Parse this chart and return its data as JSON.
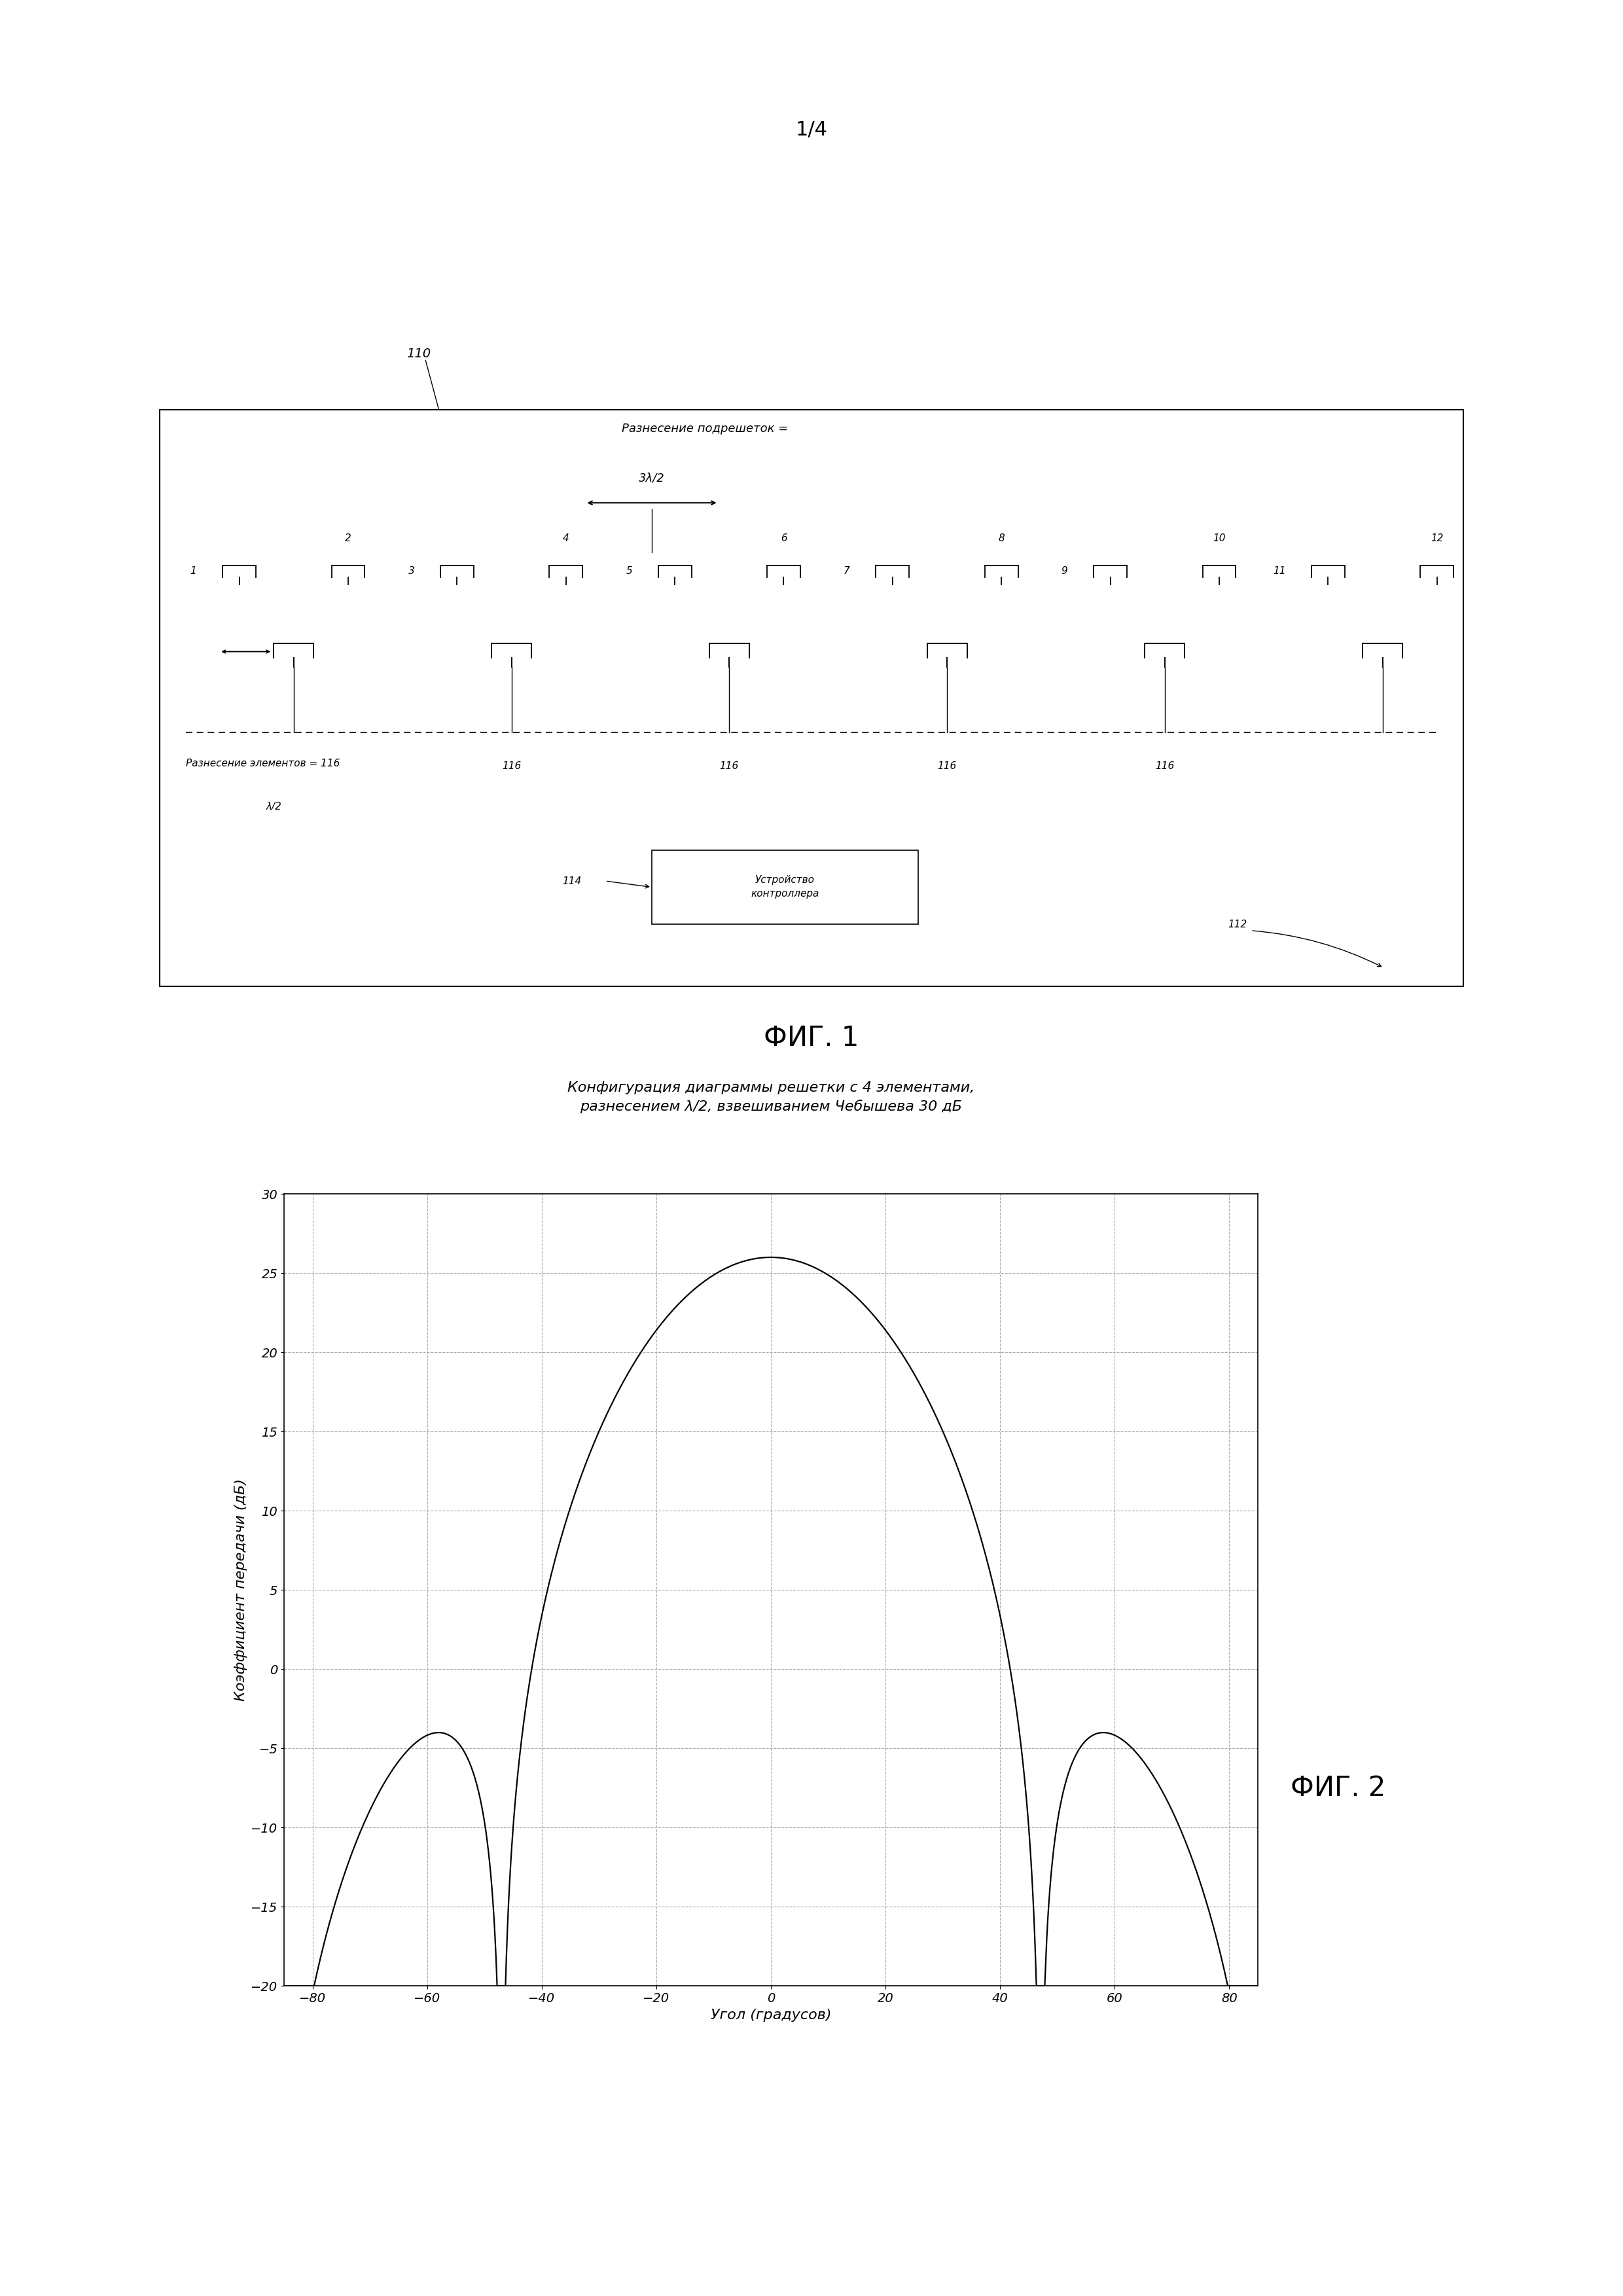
{
  "page_width": 24.8,
  "page_height": 35.08,
  "background_color": "#ffffff",
  "page_label": "1/4",
  "fig1_label": "ФИГ. 1",
  "fig2_label": "ФИГ. 2",
  "fig1_subarray_spacing_label": "Разнесение подрешеток =",
  "fig1_subarray_spacing_value": "3λ/2",
  "fig1_element_spacing_label": "Разнесение элементов =",
  "fig1_element_spacing_value": "λ/2",
  "fig1_controller_label": "Устройство\nконтроллера",
  "fig1_ref_110": "110",
  "fig1_ref_114": "114",
  "fig1_ref_112": "112",
  "fig1_ref_116": "116",
  "fig2_title_line1": "Конфигурация диаграммы решетки с 4 элементами,",
  "fig2_title_line2": "разнесением λ/2, взвешиванием Чебышева 30 дБ",
  "fig2_xlabel": "Угол (градусов)",
  "fig2_ylabel": "Коэффициент передачи (дБ)",
  "fig2_xlim": [
    -85,
    85
  ],
  "fig2_ylim": [
    -20,
    30
  ],
  "fig2_xticks": [
    -80,
    -60,
    -40,
    -20,
    0,
    20,
    40,
    60,
    80
  ],
  "fig2_yticks": [
    -20,
    -15,
    -10,
    -5,
    0,
    5,
    10,
    15,
    20,
    25,
    30
  ],
  "line_color": "#000000",
  "grid_color": "#aaaaaa"
}
